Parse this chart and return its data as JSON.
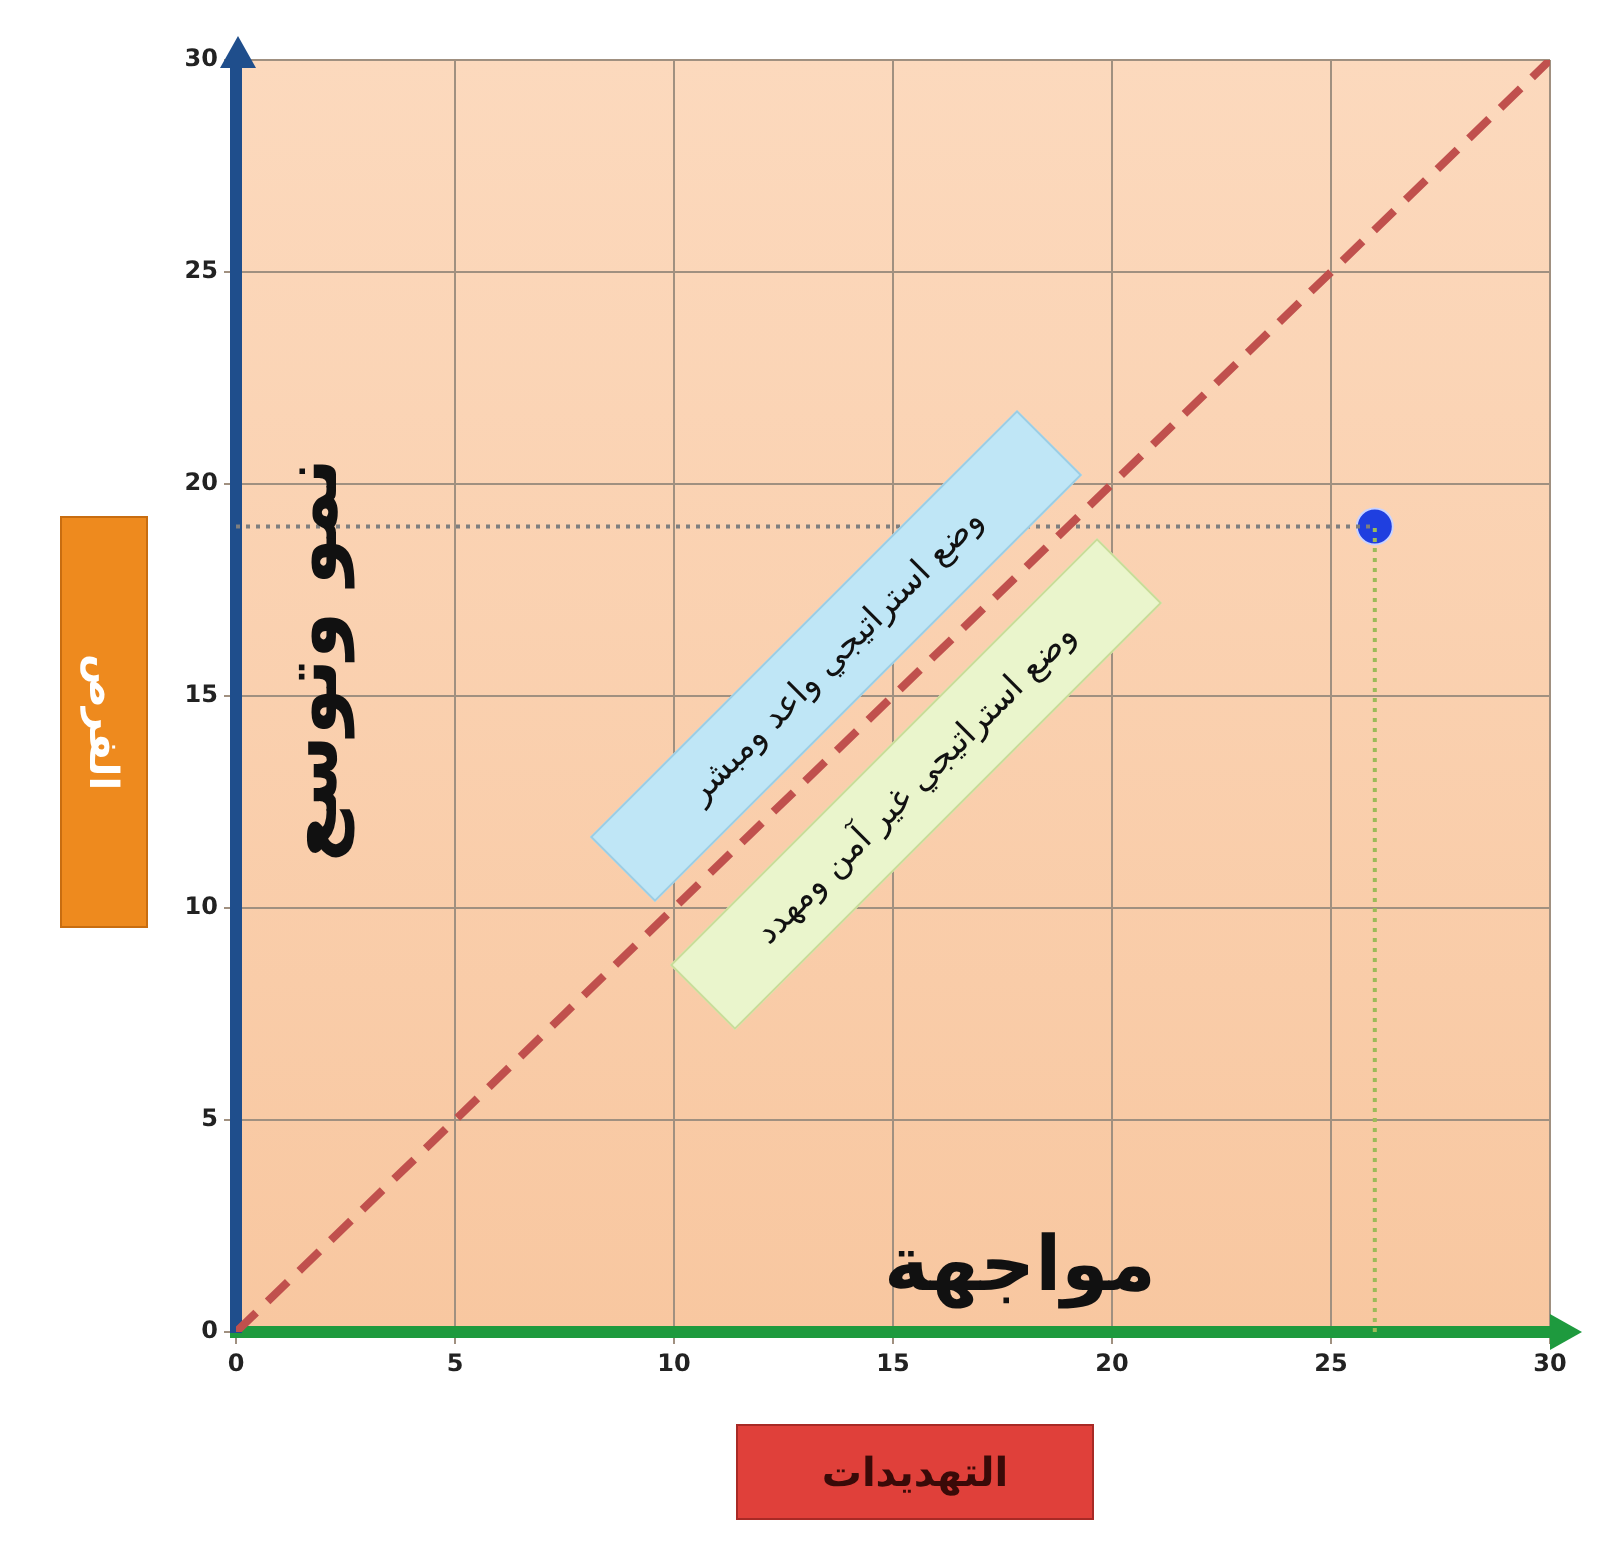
{
  "chart_data": {
    "type": "scatter",
    "xlabel": "التهديدات",
    "ylabel": "الفرص",
    "annotations": [
      "نمو وتوسع",
      "مواجهة",
      "وضع استراتيجي واعد ومبشر",
      "وضع استراتيجي غير آمن ومهدد"
    ],
    "series": [
      {
        "type": "line",
        "color": "#c0504d",
        "line_style": "dashed",
        "marker": "none",
        "x": [
          0,
          30
        ],
        "values": [
          0,
          30
        ]
      },
      {
        "type": "line",
        "color": "#7f7f7f",
        "line_style": "dotted",
        "marker": "none",
        "x": [
          0,
          26
        ],
        "values": [
          19,
          19
        ]
      },
      {
        "type": "line",
        "color": "#9bbb59",
        "line_style": "dotted",
        "marker": "none",
        "x": [
          26,
          26
        ],
        "values": [
          0,
          19
        ]
      },
      {
        "type": "scatter",
        "color": "#1f3fe0",
        "marker": "circle",
        "x": [
          26
        ],
        "values": [
          19
        ]
      }
    ],
    "xlim": [
      0,
      30
    ],
    "ylim": [
      0,
      30
    ],
    "xticks": [
      0,
      5,
      10,
      15,
      20,
      25,
      30
    ],
    "yticks": [
      0,
      5,
      10,
      15,
      20,
      25,
      30
    ],
    "grid": true,
    "legend": false
  }
}
